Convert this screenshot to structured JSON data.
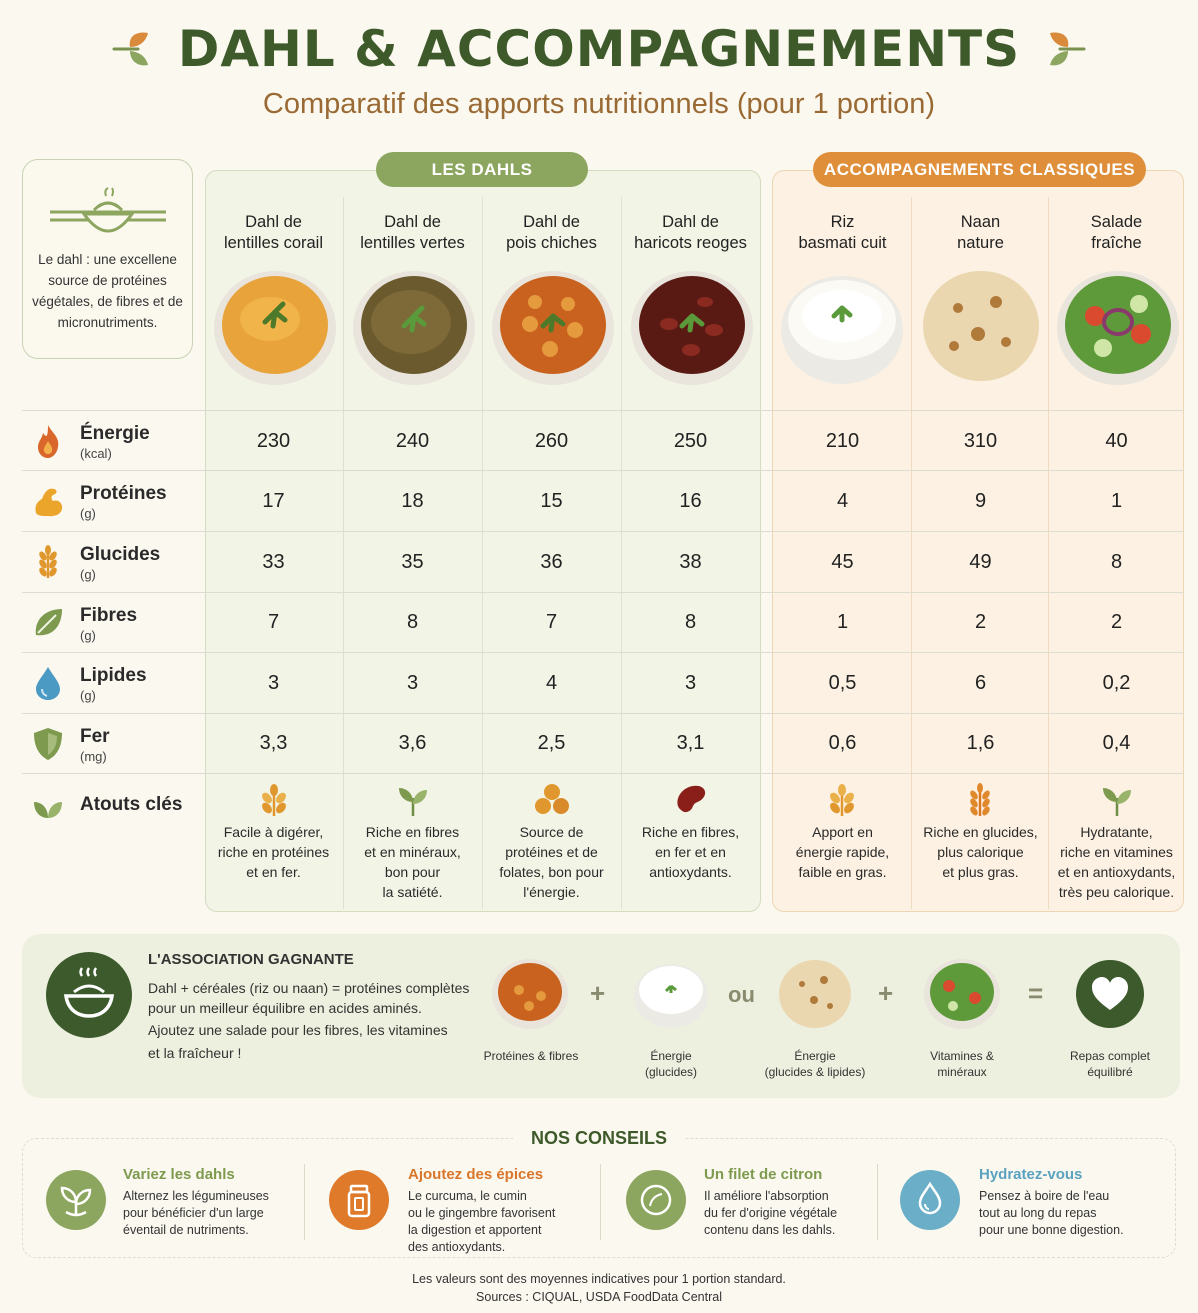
{
  "header": {
    "title": "DAHL & ACCOMPAGNEMENTS",
    "subtitle": "Comparatif des apports nutritionnels (pour 1 portion)"
  },
  "intro": {
    "text": "Le dahl : une excellene source de protéines végétales, de fibres et de micronutriments."
  },
  "groups": {
    "dahls": "LES DAHLS",
    "accompagnements": "ACCOMPAGNEMENTS CLASSIQUES"
  },
  "columns": [
    {
      "line1": "Dahl de",
      "line2": "lentilles corail",
      "bowl": "coral-lentil-dahl-bowl",
      "key_icon": "grain-icon",
      "key_text": [
        "Facile à digérer,",
        "riche en protéines",
        "et en fer."
      ]
    },
    {
      "line1": "Dahl de",
      "line2": "lentilles vertes",
      "bowl": "green-lentil-dahl-bowl",
      "key_icon": "leaf-sprout-icon",
      "key_text": [
        "Riche en fibres",
        "et en minéraux,",
        "bon pour",
        "la satiété."
      ]
    },
    {
      "line1": "Dahl de",
      "line2": "pois chiches",
      "bowl": "chickpea-dahl-bowl",
      "key_icon": "chickpeas-icon",
      "key_text": [
        "Source de",
        "protéines et de",
        "folates, bon pour",
        "l'énergie."
      ]
    },
    {
      "line1": "Dahl de",
      "line2": "haricots reoges",
      "bowl": "red-bean-dahl-bowl",
      "key_icon": "bean-icon",
      "key_text": [
        "Riche en fibres,",
        "en fer et en",
        "antioxydants."
      ]
    },
    {
      "line1": "Riz",
      "line2": "basmati cuit",
      "bowl": "basmati-rice-bowl",
      "key_icon": "grain-icon",
      "key_text": [
        "Apport en",
        "énergie rapide,",
        "faible en gras."
      ]
    },
    {
      "line1": "Naan",
      "line2": "nature",
      "bowl": "naan-bread",
      "key_icon": "wheat-icon",
      "key_text": [
        "Riche en glucides,",
        "plus calorique",
        "et plus gras."
      ]
    },
    {
      "line1": "Salade",
      "line2": "fraîche",
      "bowl": "fresh-salad-bowl",
      "key_icon": "leaf-sprout-icon",
      "key_text": [
        "Hydratante,",
        "riche en vitamines",
        "et en antioxydants,",
        "très peu calorique."
      ]
    }
  ],
  "rows": [
    {
      "name": "Énergie",
      "unit": "(kcal)",
      "icon": "flame-icon",
      "values": [
        "230",
        "240",
        "260",
        "250",
        "210",
        "310",
        "40"
      ]
    },
    {
      "name": "Protéines",
      "unit": "(g)",
      "icon": "muscle-icon",
      "values": [
        "17",
        "18",
        "15",
        "16",
        "4",
        "9",
        "1"
      ]
    },
    {
      "name": "Glucides",
      "unit": "(g)",
      "icon": "wheat-icon",
      "values": [
        "33",
        "35",
        "36",
        "38",
        "45",
        "49",
        "8"
      ]
    },
    {
      "name": "Fibres",
      "unit": "(g)",
      "icon": "leaf-icon",
      "values": [
        "7",
        "8",
        "7",
        "8",
        "1",
        "2",
        "2"
      ]
    },
    {
      "name": "Lipides",
      "unit": "(g)",
      "icon": "drop-icon",
      "values": [
        "3",
        "3",
        "4",
        "3",
        "0,5",
        "6",
        "0,2"
      ]
    },
    {
      "name": "Fer",
      "unit": "(mg)",
      "icon": "shield-icon",
      "values": [
        "3,3",
        "3,6",
        "2,5",
        "3,1",
        "0,6",
        "1,6",
        "0,4"
      ]
    }
  ],
  "key_row": {
    "name": "Atouts clés",
    "icon": "leaves-icon"
  },
  "association": {
    "title": "L'ASSOCIATION GAGNANTE",
    "lines": [
      "Dahl + céréales (riz ou naan) = protéines complètes",
      "pour un meilleur équilibre en acides aminés.",
      "Ajoutez une salade pour les fibres, les vitamines",
      "et la fraîcheur !"
    ],
    "operators": [
      "+",
      "ou",
      "+",
      "="
    ],
    "captions": [
      [
        "Protéines & fibres"
      ],
      [
        "Énergie",
        "(glucides)"
      ],
      [
        "Énergie",
        "(glucides & lipides)"
      ],
      [
        "Vitamines &",
        "minéraux"
      ],
      [
        "Repas complet",
        "équilibré"
      ]
    ]
  },
  "conseils": {
    "title": "NOS CONSEILS",
    "tips": [
      {
        "title": "Variez les dahls",
        "color": "#8ca660",
        "icon": "sprout-icon",
        "lines": [
          "Alternez les légumineuses",
          "pour bénéficier d'un large",
          "éventail de nutriments."
        ]
      },
      {
        "title": "Ajoutez des épices",
        "color": "#df7a2a",
        "icon": "spice-jar-icon",
        "lines": [
          "Le curcuma, le cumin",
          "ou le gingembre favorisent",
          "la digestion et apportent",
          "des antioxydants."
        ]
      },
      {
        "title": "Un filet de citron",
        "color": "#8ca660",
        "icon": "lemon-icon",
        "lines": [
          "Il améliore l'absorption",
          "du fer d'origine végétale",
          "contenu dans les dahls."
        ]
      },
      {
        "title": "Hydratez-vous",
        "color": "#6aaec8",
        "icon": "water-drop-icon",
        "lines": [
          "Pensez à boire de l'eau",
          "tout au long du repas",
          "pour une bonne digestion."
        ]
      }
    ]
  },
  "footer": {
    "line1": "Les valeurs sont des moyennes indicatives pour 1 portion standard.",
    "line2": "Sources : CIQUAL, USDA FoodData Central"
  }
}
